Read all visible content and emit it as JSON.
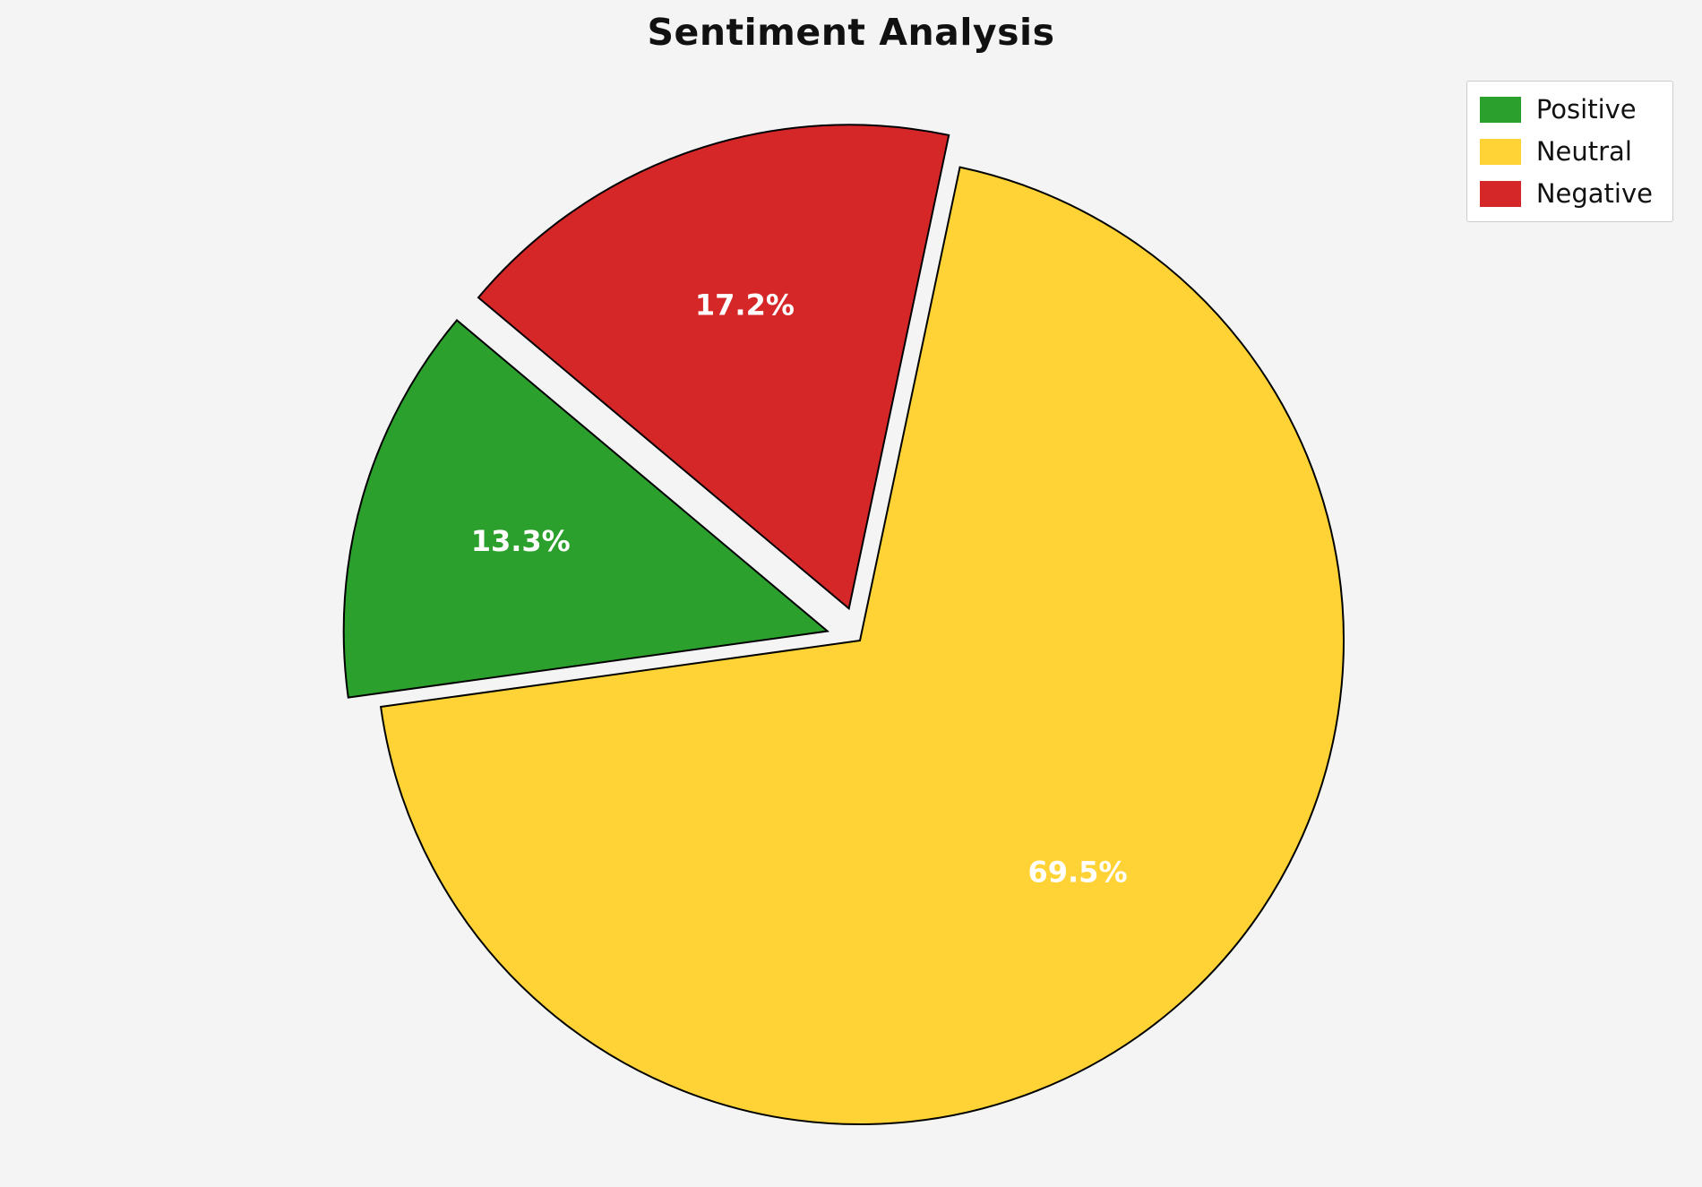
{
  "background_color": "#f4f4f5",
  "chart_data": {
    "type": "pie",
    "title": "Sentiment Analysis",
    "categories": [
      "Positive",
      "Neutral",
      "Negative"
    ],
    "values": [
      13.3,
      69.5,
      17.2
    ],
    "labels_shown": [
      "13.3%",
      "69.5%",
      "17.2%"
    ],
    "colors": [
      "#2ca02c",
      "#ffd335",
      "#d62728"
    ],
    "label_color": "#ffffff",
    "edge_color": "#000000",
    "start_angle": 140,
    "direction": "counterclockwise",
    "explode": [
      0.07,
      0,
      0.07
    ],
    "legend_position": "upper right"
  },
  "legend": {
    "items": [
      {
        "label": "Positive",
        "color": "#2ca02c"
      },
      {
        "label": "Neutral",
        "color": "#ffd335"
      },
      {
        "label": "Negative",
        "color": "#d62728"
      }
    ]
  }
}
